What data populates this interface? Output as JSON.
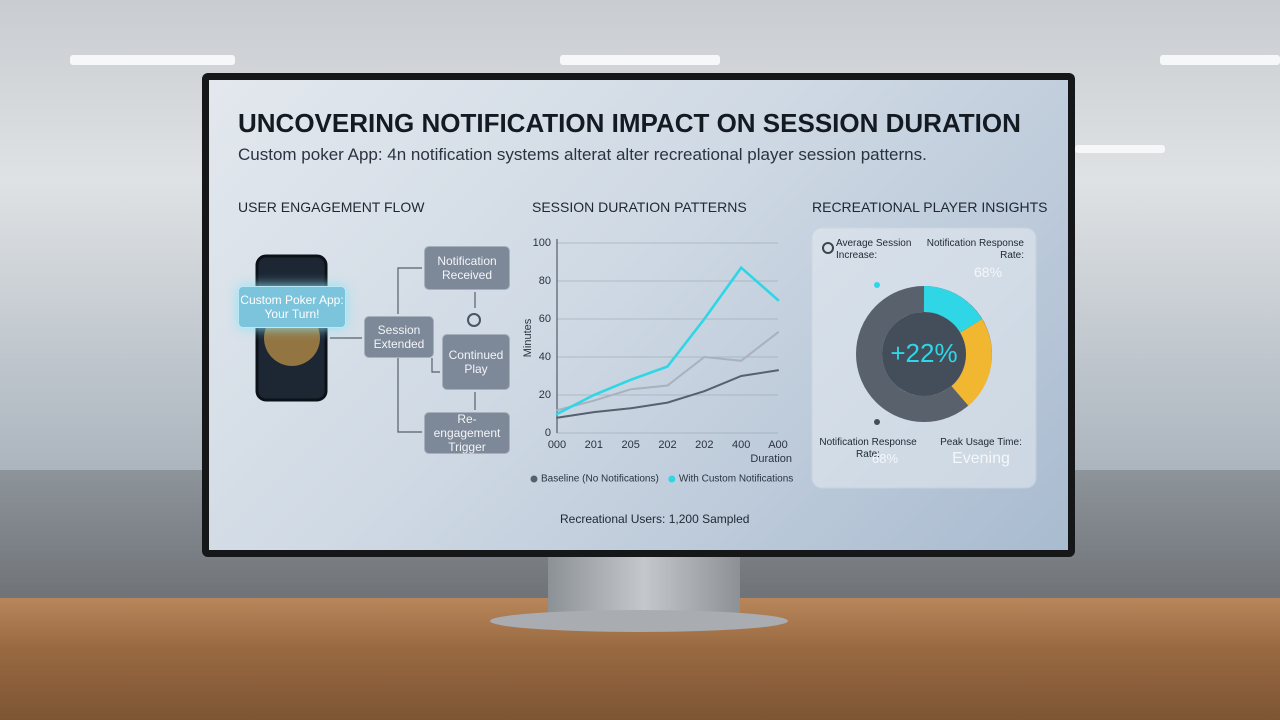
{
  "header": {
    "title": "UNCOVERING NOTIFICATION IMPACT ON SESSION DURATION",
    "subtitle": "Custom poker App: 4n notification systems alterat alter recreational player session patterns."
  },
  "flow": {
    "title": "USER ENGAGEMENT FLOW",
    "phone_label": "Custom Poker App: Your Turn!",
    "nodes": [
      {
        "label": "Notification Received"
      },
      {
        "label": "Session Extended"
      },
      {
        "label": "Continued Play"
      },
      {
        "label": "Re-engagement Trigger"
      }
    ]
  },
  "chart_data": {
    "type": "line",
    "title": "SESSION DURATION PATTERNS",
    "y_label": "Minutes",
    "x_label": "Duration",
    "categories": [
      "000",
      "201",
      "205",
      "202",
      "202",
      "400",
      "A00"
    ],
    "series": [
      {
        "name": "Baseline (No Notifications)",
        "color": "#56606e",
        "values": [
          8,
          11,
          13,
          16,
          22,
          30,
          33
        ]
      },
      {
        "name": "With Custom Notifications",
        "color": "#2fd6e6",
        "values": [
          10,
          20,
          28,
          35,
          60,
          87,
          70
        ]
      },
      {
        "color": "#a9b1bd",
        "values": [
          12,
          17,
          23,
          25,
          40,
          38,
          53
        ]
      }
    ],
    "ylim": [
      0,
      100
    ],
    "yticks": [
      0,
      20,
      40,
      60,
      80,
      100
    ],
    "grid": true,
    "note": "Recreational Users: 1,200 Sampled"
  },
  "insights": {
    "title": "RECREATIONAL PLAYER INSIGHTS",
    "avg_label": "Average Session Increase:",
    "rate_label": "Notification Response Rate:",
    "rate_value": "68%",
    "center_value": "+22%",
    "rate_label_2": "Notification Response Rate:",
    "rate_value_2": "68%",
    "peak_label": "Peak Usage Time:",
    "peak_value": "Evening"
  }
}
